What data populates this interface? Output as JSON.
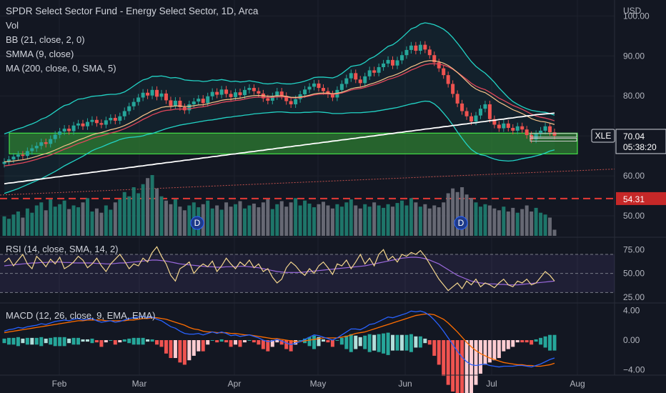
{
  "header": {
    "title": "SPDR Select Sector Fund - Energy Select Sector, 1D, Arca",
    "vol_label": "Vol",
    "bb_label": "BB (21, close, 2, 0)",
    "smma_label": "SMMA (9, close)",
    "ma_label": "MA (200, close, 0, SMA, 5)"
  },
  "rsi_label": "RSI (14, close, SMA, 14, 2)",
  "macd_label": "MACD (12, 26, close, 9, EMA, EMA)",
  "currency": "USD",
  "price_tag": {
    "symbol": "XLE",
    "price": "70.04",
    "countdown": "05:38:20"
  },
  "level_tag": "54.31",
  "colors": {
    "background": "#131722",
    "up": "#26a69a",
    "down": "#ef5350",
    "bb_line": "#22d3c5",
    "smma": "#f7c48a",
    "ema_red": "#e0465a",
    "ma200": "#ffffff",
    "zone_fill": "#2e7d32",
    "zone_border": "#4cff4c",
    "level_line": "#e53935",
    "rsi_line": "#f5d78e",
    "rsi_ma": "#9c6ade",
    "macd_line": "#2962ff",
    "signal_line": "#ff6d00"
  },
  "chart_data": [
    {
      "type": "candlestick",
      "title": "SPDR Select Sector Fund - Energy Select Sector, 1D, Arca",
      "y_axis_ticks": [
        "100.00",
        "90.00",
        "80.00",
        "70.00",
        "60.00",
        "50.00"
      ],
      "x_axis_ticks": [
        "Feb",
        "Mar",
        "Apr",
        "May",
        "Jun",
        "Jul",
        "Aug"
      ],
      "ylim": [
        45,
        104
      ],
      "close_series": [
        63.5,
        64.1,
        64.8,
        65.3,
        65.0,
        66.2,
        66.9,
        67.5,
        68.4,
        68.0,
        69.2,
        70.3,
        71.1,
        71.8,
        71.2,
        72.6,
        73.1,
        72.4,
        73.5,
        74.0,
        73.2,
        72.8,
        73.9,
        74.5,
        73.8,
        74.9,
        76.2,
        77.4,
        78.5,
        79.6,
        80.8,
        80.1,
        81.5,
        79.8,
        80.6,
        78.9,
        77.5,
        78.8,
        77.2,
        76.4,
        77.9,
        78.6,
        79.3,
        78.2,
        79.9,
        81.0,
        80.3,
        81.6,
        80.5,
        79.7,
        80.9,
        80.2,
        81.5,
        82.0,
        81.2,
        80.6,
        79.4,
        78.8,
        79.9,
        81.1,
        80.0,
        78.7,
        77.9,
        79.2,
        80.4,
        81.6,
        82.3,
        83.1,
        82.0,
        81.2,
        80.4,
        79.6,
        81.5,
        83.0,
        84.4,
        85.7,
        84.1,
        83.2,
        84.9,
        86.4,
        85.8,
        87.2,
        88.1,
        89.0,
        87.6,
        88.9,
        90.2,
        91.5,
        92.6,
        91.3,
        92.8,
        91.6,
        90.2,
        88.4,
        86.9,
        85.2,
        83.0,
        80.5,
        78.1,
        76.2,
        74.9,
        73.6,
        75.1,
        76.8,
        77.9,
        74.2,
        72.8,
        71.9,
        73.1,
        72.0,
        71.3,
        72.4,
        71.6,
        70.2,
        69.1,
        70.5,
        71.3,
        72.4,
        70.9,
        70.04
      ],
      "open_close_pairs_note": "",
      "bb_upper": [
        70.5,
        70.9,
        71.4,
        71.8,
        72.1,
        72.6,
        73.0,
        73.5,
        74.2,
        74.6,
        75.3,
        76.1,
        76.9,
        77.6,
        77.9,
        78.6,
        79.2,
        79.3,
        79.6,
        79.9,
        80.0,
        80.1,
        80.3,
        80.4,
        80.4,
        80.6,
        81.0,
        81.7,
        82.5,
        83.3,
        84.0,
        84.3,
        84.9,
        84.9,
        85.0,
        84.8,
        84.5,
        84.6,
        84.4,
        84.0,
        83.9,
        83.8,
        83.8,
        83.6,
        83.7,
        84.0,
        83.9,
        84.1,
        83.9,
        83.6,
        83.7,
        83.5,
        83.6,
        83.8,
        83.6,
        83.4,
        83.1,
        83.0,
        83.1,
        83.3,
        83.1,
        83.0,
        83.0,
        83.2,
        83.4,
        83.7,
        84.1,
        84.6,
        84.7,
        84.7,
        84.6,
        84.5,
        84.9,
        85.6,
        86.5,
        87.4,
        87.6,
        87.8,
        88.4,
        89.3,
        89.8,
        90.6,
        91.5,
        92.4,
        92.8,
        93.6,
        94.6,
        95.7,
        96.8,
        97.2,
        98.0,
        98.3,
        98.1,
        97.8,
        97.3,
        96.7,
        95.8,
        94.6,
        93.2,
        91.7,
        90.1,
        88.6,
        87.4,
        86.5,
        85.7,
        84.6,
        83.4,
        82.0,
        80.8,
        79.6,
        78.6,
        77.9,
        77.3,
        76.8,
        76.4,
        76.2,
        76.0,
        75.9,
        75.6,
        75.2
      ],
      "bb_lower": [
        55.6,
        56.0,
        56.4,
        56.8,
        57.3,
        57.8,
        58.3,
        58.8,
        59.3,
        59.9,
        60.5,
        61.1,
        61.8,
        62.5,
        63.1,
        63.7,
        64.3,
        64.9,
        65.6,
        66.3,
        66.8,
        67.2,
        67.7,
        68.2,
        68.6,
        69.1,
        69.4,
        69.6,
        69.7,
        69.8,
        70.0,
        70.4,
        70.6,
        71.0,
        71.4,
        71.8,
        72.1,
        72.4,
        72.7,
        72.9,
        73.1,
        73.3,
        73.5,
        73.7,
        73.9,
        74.0,
        74.2,
        74.4,
        74.6,
        74.7,
        74.9,
        75.0,
        75.2,
        75.3,
        75.5,
        75.6,
        75.7,
        75.8,
        75.9,
        76.0,
        76.0,
        75.9,
        75.8,
        75.8,
        75.8,
        75.9,
        75.9,
        76.0,
        76.0,
        75.9,
        75.8,
        75.6,
        75.6,
        75.6,
        75.7,
        75.8,
        75.8,
        75.8,
        75.9,
        76.0,
        76.1,
        76.3,
        76.5,
        76.7,
        76.9,
        77.1,
        77.4,
        77.7,
        78.0,
        78.2,
        78.5,
        78.7,
        78.6,
        78.0,
        77.0,
        75.7,
        74.3,
        72.7,
        71.0,
        69.4,
        67.9,
        66.6,
        65.8,
        65.3,
        65.1,
        64.6,
        64.2,
        63.9,
        63.8,
        63.7,
        63.8,
        64.0,
        64.3,
        64.5,
        64.7,
        65.0,
        65.3,
        65.7,
        66.2,
        66.5
      ],
      "ma200": [
        58.0,
        58.2,
        58.3,
        58.5,
        58.6,
        58.8,
        58.9,
        59.1,
        59.2,
        59.4,
        59.5,
        59.7,
        59.8,
        60.0,
        60.1,
        60.3,
        60.4,
        60.6,
        60.7,
        60.9,
        61.0,
        61.2,
        61.3,
        61.5,
        61.6,
        61.8,
        61.9,
        62.1,
        62.2,
        62.4,
        62.5,
        62.7,
        62.8,
        63.0,
        63.1,
        63.3,
        63.4,
        63.6,
        63.7,
        63.9,
        64.0,
        64.2,
        64.3,
        64.5,
        64.6,
        64.8,
        64.9,
        65.1,
        65.2,
        65.4,
        65.5,
        65.7,
        65.8,
        66.0,
        66.1,
        66.3,
        66.4,
        66.6,
        66.7,
        66.9,
        67.0,
        67.2,
        67.3,
        67.5,
        67.6,
        67.8,
        67.9,
        68.1,
        68.2,
        68.4,
        68.5,
        68.7,
        68.8,
        69.0,
        69.1,
        69.3,
        69.4,
        69.6,
        69.7,
        69.9,
        70.0,
        70.2,
        70.3,
        70.5,
        70.6,
        70.8,
        70.9,
        71.1,
        71.2,
        71.4,
        71.5,
        71.7,
        71.8,
        72.0,
        72.1,
        72.3,
        72.4,
        72.6,
        72.7,
        72.9,
        73.0,
        73.2,
        73.3,
        73.5,
        73.6,
        73.8,
        73.9,
        74.1,
        74.2,
        74.4,
        74.5,
        74.7,
        74.8,
        75.0,
        75.1,
        75.3,
        75.4,
        75.5,
        75.6,
        75.7
      ],
      "zone": [
        65.5,
        70.7
      ],
      "level_line": 54.31,
      "last_price": 70.04
    },
    {
      "type": "bar",
      "title": "Vol",
      "values": [
        0.32,
        0.28,
        0.35,
        0.4,
        0.3,
        0.45,
        0.38,
        0.5,
        0.55,
        0.42,
        0.6,
        0.48,
        0.52,
        0.58,
        0.44,
        0.5,
        0.47,
        0.55,
        0.62,
        0.4,
        0.45,
        0.38,
        0.5,
        0.43,
        0.55,
        0.6,
        0.72,
        0.65,
        0.8,
        0.7,
        0.85,
        0.95,
        1.0,
        0.78,
        0.65,
        0.58,
        0.52,
        0.6,
        0.48,
        0.42,
        0.5,
        0.55,
        0.47,
        0.52,
        0.58,
        0.45,
        0.5,
        0.43,
        0.55,
        0.48,
        0.52,
        0.57,
        0.45,
        0.5,
        0.53,
        0.47,
        0.55,
        0.6,
        0.44,
        0.52,
        0.57,
        0.48,
        0.55,
        0.62,
        0.5,
        0.58,
        0.53,
        0.47,
        0.52,
        0.56,
        0.5,
        0.45,
        0.52,
        0.48,
        0.55,
        0.6,
        0.5,
        0.45,
        0.52,
        0.48,
        0.55,
        0.5,
        0.46,
        0.52,
        0.48,
        0.54,
        0.58,
        0.5,
        0.62,
        0.55,
        0.48,
        0.52,
        0.45,
        0.5,
        0.47,
        0.55,
        0.7,
        0.78,
        0.72,
        0.8,
        0.68,
        0.62,
        0.55,
        0.48,
        0.52,
        0.5,
        0.45,
        0.42,
        0.48,
        0.4,
        0.46,
        0.38,
        0.44,
        0.5,
        0.4,
        0.46,
        0.38,
        0.35,
        0.3,
        0.1
      ]
    },
    {
      "type": "line",
      "title": "RSI (14, close, SMA, 14, 2)",
      "y_axis_ticks": [
        "75.00",
        "50.00",
        "25.00"
      ],
      "ylim": [
        22,
        85
      ],
      "bands": [
        70,
        50,
        30
      ],
      "rsi": [
        62,
        66,
        58,
        64,
        70,
        60,
        55,
        68,
        63,
        57,
        65,
        60,
        67,
        55,
        58,
        62,
        68,
        64,
        56,
        60,
        66,
        58,
        52,
        60,
        65,
        70,
        63,
        55,
        60,
        58,
        66,
        62,
        72,
        78,
        68,
        60,
        48,
        42,
        55,
        58,
        62,
        50,
        56,
        60,
        57,
        63,
        52,
        58,
        66,
        60,
        55,
        62,
        58,
        64,
        56,
        60,
        52,
        55,
        46,
        40,
        44,
        56,
        62,
        58,
        52,
        48,
        55,
        50,
        58,
        62,
        56,
        49,
        60,
        58,
        64,
        55,
        62,
        70,
        60,
        66,
        58,
        70,
        75,
        64,
        68,
        62,
        70,
        68,
        72,
        70,
        74,
        68,
        60,
        52,
        44,
        38,
        32,
        36,
        40,
        34,
        42,
        38,
        44,
        36,
        40,
        38,
        35,
        40,
        44,
        38,
        36,
        42,
        40,
        44,
        38,
        40,
        46,
        52,
        48,
        42
      ],
      "rsi_ma": [
        58,
        58.5,
        59,
        59.5,
        60,
        60.5,
        61,
        61,
        61.5,
        61.5,
        62,
        62,
        62,
        61.5,
        61.5,
        61,
        61,
        61,
        61,
        61,
        60.5,
        60.5,
        60,
        60,
        60.5,
        61,
        61,
        61.5,
        62,
        62.5,
        63,
        63.5,
        64,
        64,
        63.5,
        63,
        62,
        61,
        60,
        59.5,
        59,
        58.5,
        58,
        57.5,
        57,
        57,
        56.5,
        56.5,
        57,
        57,
        57,
        57.5,
        57.5,
        57,
        56.5,
        56,
        55,
        54,
        53,
        52,
        51.5,
        51,
        51,
        51,
        51,
        51.5,
        52,
        52.5,
        53,
        53.5,
        54,
        54.5,
        55,
        55.5,
        56,
        56.5,
        57,
        57.5,
        58,
        59,
        60,
        61,
        62,
        63,
        64,
        65,
        66,
        66.5,
        67,
        67,
        66.5,
        65.5,
        64,
        62,
        60,
        57,
        54,
        51,
        48,
        46,
        44,
        42,
        41,
        40,
        39.5,
        39,
        39,
        38.5,
        38.5,
        38,
        38,
        38,
        38.5,
        39,
        39.5,
        40,
        40.5,
        41,
        41.5,
        42
      ]
    },
    {
      "type": "bar_line",
      "title": "MACD (12, 26, close, 9, EMA, EMA)",
      "y_axis_ticks": [
        "4.00",
        "0.00",
        "−4.00"
      ],
      "ylim": [
        -4.6,
        4.6
      ],
      "macd": [
        1.2,
        1.4,
        1.5,
        1.7,
        1.6,
        1.8,
        1.9,
        2.0,
        2.2,
        2.1,
        2.3,
        2.5,
        2.6,
        2.7,
        2.6,
        2.8,
        2.9,
        2.7,
        2.8,
        2.9,
        2.6,
        2.4,
        2.5,
        2.6,
        2.4,
        2.5,
        2.7,
        2.9,
        3.0,
        3.1,
        3.2,
        3.0,
        3.1,
        2.8,
        2.6,
        2.2,
        1.8,
        1.6,
        1.2,
        0.9,
        0.8,
        0.8,
        0.9,
        0.7,
        0.9,
        1.1,
        0.9,
        1.1,
        0.9,
        0.6,
        0.7,
        0.5,
        0.6,
        0.7,
        0.5,
        0.3,
        0.0,
        -0.2,
        -0.1,
        0.1,
        -0.1,
        -0.4,
        -0.6,
        -0.4,
        -0.2,
        0.1,
        0.4,
        0.7,
        0.6,
        0.4,
        0.2,
        0.0,
        0.3,
        0.7,
        1.1,
        1.5,
        1.5,
        1.4,
        1.7,
        2.1,
        2.2,
        2.5,
        2.8,
        3.1,
        3.0,
        3.2,
        3.4,
        3.6,
        3.9,
        3.8,
        3.9,
        3.7,
        3.3,
        2.7,
        2.0,
        1.2,
        0.3,
        -0.6,
        -1.5,
        -2.3,
        -2.9,
        -3.3,
        -3.4,
        -3.3,
        -3.2,
        -3.4,
        -3.5,
        -3.6,
        -3.5,
        -3.5,
        -3.5,
        -3.4,
        -3.4,
        -3.5,
        -3.6,
        -3.4,
        -3.2,
        -2.9,
        -2.6,
        -2.4
      ],
      "signal": [
        1.0,
        1.1,
        1.2,
        1.3,
        1.4,
        1.5,
        1.6,
        1.7,
        1.8,
        1.9,
        2.0,
        2.1,
        2.2,
        2.3,
        2.4,
        2.5,
        2.6,
        2.6,
        2.7,
        2.7,
        2.7,
        2.7,
        2.6,
        2.6,
        2.6,
        2.6,
        2.6,
        2.7,
        2.7,
        2.8,
        2.9,
        2.9,
        3.0,
        3.0,
        2.9,
        2.8,
        2.6,
        2.4,
        2.2,
        2.0,
        1.7,
        1.5,
        1.4,
        1.2,
        1.1,
        1.1,
        1.0,
        1.0,
        1.0,
        0.9,
        0.9,
        0.8,
        0.7,
        0.7,
        0.6,
        0.5,
        0.4,
        0.3,
        0.2,
        0.2,
        0.1,
        0.0,
        -0.1,
        -0.2,
        -0.2,
        -0.1,
        0.0,
        0.1,
        0.2,
        0.3,
        0.3,
        0.3,
        0.3,
        0.4,
        0.5,
        0.7,
        0.9,
        1.0,
        1.1,
        1.3,
        1.5,
        1.7,
        1.9,
        2.1,
        2.3,
        2.5,
        2.7,
        2.9,
        3.1,
        3.3,
        3.4,
        3.5,
        3.5,
        3.4,
        3.1,
        2.8,
        2.3,
        1.7,
        1.1,
        0.4,
        -0.3,
        -0.9,
        -1.4,
        -1.8,
        -2.1,
        -2.4,
        -2.6,
        -2.8,
        -3.0,
        -3.1,
        -3.2,
        -3.3,
        -3.3,
        -3.4,
        -3.4,
        -3.5,
        -3.5,
        -3.4,
        -3.3,
        -3.1
      ]
    }
  ]
}
